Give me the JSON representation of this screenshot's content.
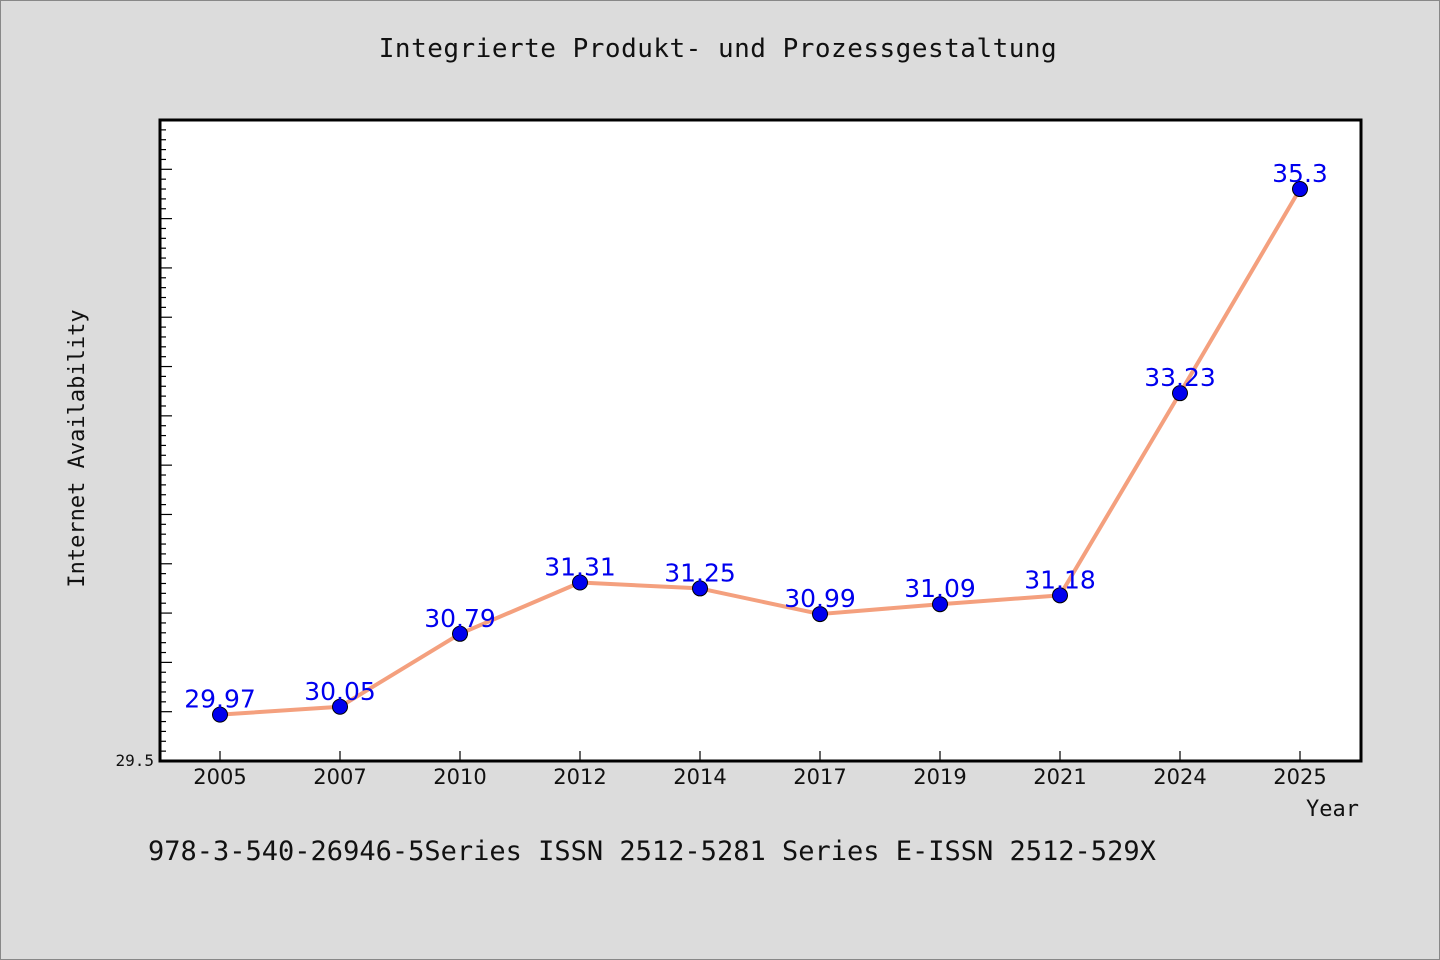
{
  "page": {
    "background": "#dcdcdc",
    "footer_text": "978-3-540-26946-5Series ISSN 2512-5281 Series E-ISSN 2512-529X"
  },
  "chart_data": {
    "type": "line",
    "title": "Integrierte Produkt- und Prozessgestaltung",
    "xlabel": "Year",
    "ylabel": "Internet Availability",
    "categories": [
      "2005",
      "2007",
      "2010",
      "2012",
      "2014",
      "2017",
      "2019",
      "2021",
      "2024",
      "2025"
    ],
    "series": [
      {
        "values": [
          29.97,
          30.05,
          30.79,
          31.31,
          31.25,
          30.99,
          31.09,
          31.18,
          33.23,
          35.3
        ],
        "labels": [
          "29.97",
          "30.05",
          "30.79",
          "31.31",
          "31.25",
          "30.99",
          "31.09",
          "31.18",
          "33.23",
          "35.3"
        ],
        "line_color": "#f4a07e",
        "marker_color": "#0000ee",
        "label_color": "#0000ee"
      }
    ],
    "ylim": [
      29.5,
      36.0
    ],
    "yticks_labeled": [
      "29.5"
    ],
    "grid": false,
    "legend": "none",
    "plot_background": "#ffffff"
  }
}
